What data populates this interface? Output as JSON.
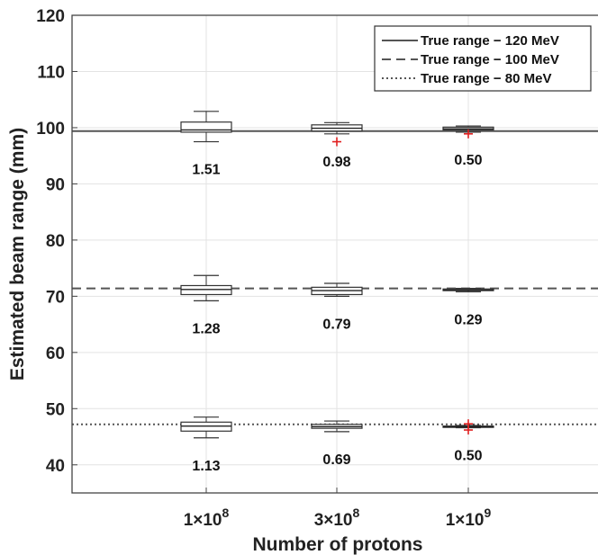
{
  "chart_data": {
    "type": "box",
    "xlabel": "Number of protons",
    "ylabel": "Estimated beam range (mm)",
    "ylim": [
      35,
      120
    ],
    "yticks": [
      40,
      50,
      60,
      70,
      80,
      90,
      100,
      110,
      120
    ],
    "categories": [
      {
        "base": "1×10",
        "exp": "8"
      },
      {
        "base": "3×10",
        "exp": "8"
      },
      {
        "base": "1×10",
        "exp": "9"
      }
    ],
    "grid": true,
    "legend_position": "top-right",
    "reference_lines": [
      {
        "name": "True range − 120 MeV",
        "y": 99.4,
        "style": "solid"
      },
      {
        "name": "True range − 100 MeV",
        "y": 71.4,
        "style": "dashed"
      },
      {
        "name": "True range − 80 MeV",
        "y": 47.2,
        "style": "dotted"
      }
    ],
    "series": [
      {
        "boxes": [
          {
            "whisker_low": 97.5,
            "q1": 99.2,
            "median": 99.6,
            "q3": 101.0,
            "whisker_high": 102.9,
            "outliers": [],
            "label": "1.51"
          },
          {
            "whisker_low": 98.9,
            "q1": 99.4,
            "median": 99.9,
            "q3": 100.5,
            "whisker_high": 100.9,
            "outliers": [
              97.5
            ],
            "label": "0.98"
          },
          {
            "whisker_low": 99.2,
            "q1": 99.6,
            "median": 99.8,
            "q3": 100.1,
            "whisker_high": 100.3,
            "outliers": [
              98.9
            ],
            "label": "0.50"
          }
        ]
      },
      {
        "boxes": [
          {
            "whisker_low": 69.2,
            "q1": 70.3,
            "median": 71.2,
            "q3": 71.9,
            "whisker_high": 73.7,
            "outliers": [],
            "label": "1.28"
          },
          {
            "whisker_low": 70.0,
            "q1": 70.3,
            "median": 71.0,
            "q3": 71.6,
            "whisker_high": 72.3,
            "outliers": [],
            "label": "0.79"
          },
          {
            "whisker_low": 70.8,
            "q1": 71.0,
            "median": 71.1,
            "q3": 71.3,
            "whisker_high": 71.4,
            "outliers": [],
            "label": "0.29"
          }
        ]
      },
      {
        "boxes": [
          {
            "whisker_low": 44.8,
            "q1": 46.0,
            "median": 46.9,
            "q3": 47.6,
            "whisker_high": 48.5,
            "outliers": [],
            "label": "1.13"
          },
          {
            "whisker_low": 45.9,
            "q1": 46.5,
            "median": 46.8,
            "q3": 47.2,
            "whisker_high": 47.8,
            "outliers": [],
            "label": "0.69"
          },
          {
            "whisker_low": 46.6,
            "q1": 46.7,
            "median": 46.8,
            "q3": 46.9,
            "whisker_high": 47.0,
            "outliers": [
              47.3,
              46.2
            ],
            "label": "0.50"
          }
        ]
      }
    ]
  }
}
